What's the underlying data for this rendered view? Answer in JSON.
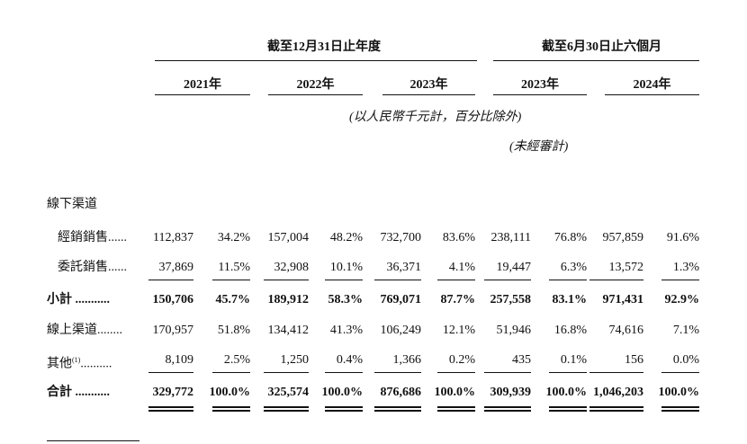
{
  "table": {
    "group_headers": [
      "截至12月31日止年度",
      "截至6月30日止六個月"
    ],
    "years": [
      "2021年",
      "2022年",
      "2023年",
      "2023年",
      "2024年"
    ],
    "unit_note": "(以人民幣千元計，百分比除外)",
    "audit_note": "(未經審計)",
    "rows": [
      {
        "label": "線下渠道",
        "values": []
      },
      {
        "label": "經銷銷售......",
        "values": [
          "112,837",
          "34.2%",
          "157,004",
          "48.2%",
          "732,700",
          "83.6%",
          "238,111",
          "76.8%",
          "957,859",
          "91.6%"
        ]
      },
      {
        "label": "委託銷售......",
        "values": [
          "37,869",
          "11.5%",
          "32,908",
          "10.1%",
          "36,371",
          "4.1%",
          "19,447",
          "6.3%",
          "13,572",
          "1.3%"
        ]
      },
      {
        "label": "小計 ...........",
        "values": [
          "150,706",
          "45.7%",
          "189,912",
          "58.3%",
          "769,071",
          "87.7%",
          "257,558",
          "83.1%",
          "971,431",
          "92.9%"
        ]
      },
      {
        "label": "線上渠道........",
        "values": [
          "170,957",
          "51.8%",
          "134,412",
          "41.3%",
          "106,249",
          "12.1%",
          "51,946",
          "16.8%",
          "74,616",
          "7.1%"
        ]
      },
      {
        "label": "其他",
        "sup": "(1)",
        "leader": "..........",
        "values": [
          "8,109",
          "2.5%",
          "1,250",
          "0.4%",
          "1,366",
          "0.2%",
          "435",
          "0.1%",
          "156",
          "0.0%"
        ]
      },
      {
        "label": "合計 ...........",
        "values": [
          "329,772",
          "100.0%",
          "325,574",
          "100.0%",
          "876,686",
          "100.0%",
          "309,939",
          "100.0%",
          "1,046,203",
          "100.0%"
        ]
      }
    ]
  }
}
